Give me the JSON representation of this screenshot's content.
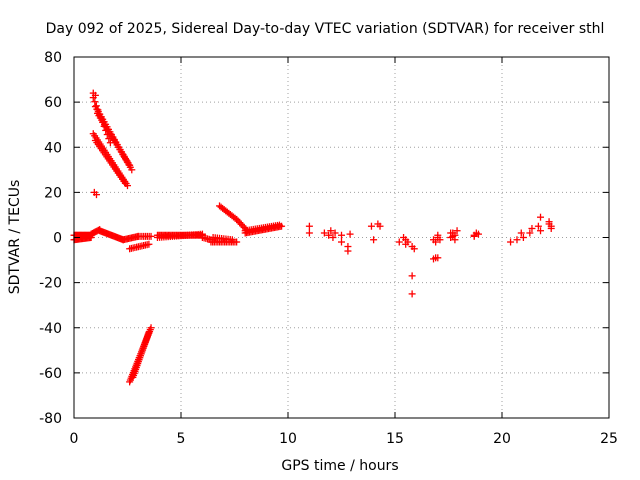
{
  "chart_data": {
    "type": "scatter",
    "title": "Day 092 of 2025, Sidereal Day-to-day VTEC variation (SDTVAR) for receiver sthl",
    "xlabel": "GPS time / hours",
    "ylabel": "SDTVAR / TECUs",
    "xlim": [
      0,
      25
    ],
    "ylim": [
      -80,
      80
    ],
    "xticks": [
      0,
      5,
      10,
      15,
      20,
      25
    ],
    "yticks": [
      -80,
      -60,
      -40,
      -20,
      0,
      20,
      40,
      60,
      80
    ],
    "grid": true,
    "marker": "+",
    "color": "#ff0000",
    "series": [
      {
        "name": "segments",
        "segments": [
          {
            "x0": 0.0,
            "y0": 1.0,
            "x1": 0.8,
            "y1": 1.0,
            "n": 22
          },
          {
            "x0": 0.0,
            "y0": -1.0,
            "x1": 0.8,
            "y1": 0.0,
            "n": 16
          },
          {
            "x0": 0.8,
            "y0": 1.5,
            "x1": 1.2,
            "y1": 3.5,
            "n": 8
          },
          {
            "x0": 1.2,
            "y0": 3.0,
            "x1": 2.3,
            "y1": -1.0,
            "n": 22
          },
          {
            "x0": 2.3,
            "y0": -1.0,
            "x1": 3.0,
            "y1": 0.5,
            "n": 12
          },
          {
            "x0": 3.0,
            "y0": 0.5,
            "x1": 3.6,
            "y1": 0.5,
            "n": 8
          },
          {
            "x0": 0.9,
            "y0": 62.0,
            "x1": 1.7,
            "y1": 42.0,
            "n": 12
          },
          {
            "x0": 1.0,
            "y0": 58.0,
            "x1": 2.7,
            "y1": 30.0,
            "n": 26
          },
          {
            "x0": 1.1,
            "y0": 55.0,
            "x1": 2.6,
            "y1": 32.0,
            "n": 24
          },
          {
            "x0": 0.9,
            "y0": 46.0,
            "x1": 2.5,
            "y1": 23.0,
            "n": 26
          },
          {
            "x0": 1.0,
            "y0": 43.0,
            "x1": 2.4,
            "y1": 24.0,
            "n": 22
          },
          {
            "x0": 2.6,
            "y0": -5.0,
            "x1": 3.5,
            "y1": -3.0,
            "n": 12
          },
          {
            "x0": 2.6,
            "y0": -64.0,
            "x1": 3.6,
            "y1": -40.0,
            "n": 30
          },
          {
            "x0": 2.75,
            "y0": -62.0,
            "x1": 3.5,
            "y1": -42.0,
            "n": 24
          },
          {
            "x0": 3.9,
            "y0": 1.0,
            "x1": 6.0,
            "y1": 1.0,
            "n": 34
          },
          {
            "x0": 3.9,
            "y0": 0.0,
            "x1": 6.0,
            "y1": 1.5,
            "n": 22
          },
          {
            "x0": 6.0,
            "y0": 0.0,
            "x1": 6.4,
            "y1": -1.0,
            "n": 6
          },
          {
            "x0": 6.4,
            "y0": -2.0,
            "x1": 7.6,
            "y1": -2.0,
            "n": 16
          },
          {
            "x0": 6.5,
            "y0": 0.0,
            "x1": 7.4,
            "y1": -1.0,
            "n": 10
          },
          {
            "x0": 6.8,
            "y0": 14.0,
            "x1": 7.6,
            "y1": 8.0,
            "n": 12
          },
          {
            "x0": 7.6,
            "y0": 8.0,
            "x1": 8.1,
            "y1": 3.0,
            "n": 8
          },
          {
            "x0": 8.0,
            "y0": 2.0,
            "x1": 9.7,
            "y1": 5.0,
            "n": 26
          },
          {
            "x0": 8.0,
            "y0": 3.0,
            "x1": 9.6,
            "y1": 5.5,
            "n": 18
          }
        ]
      },
      {
        "name": "points",
        "points": [
          [
            0.95,
            20.0
          ],
          [
            1.05,
            19.0
          ],
          [
            0.9,
            64.0
          ],
          [
            1.0,
            63.0
          ],
          [
            11.0,
            5.0
          ],
          [
            11.0,
            2.0
          ],
          [
            11.7,
            2.0
          ],
          [
            11.9,
            1.0
          ],
          [
            12.0,
            3.0
          ],
          [
            12.1,
            0.0
          ],
          [
            12.2,
            2.0
          ],
          [
            12.5,
            1.0
          ],
          [
            12.5,
            -2.0
          ],
          [
            12.8,
            -4.0
          ],
          [
            12.8,
            -6.0
          ],
          [
            12.9,
            1.5
          ],
          [
            13.9,
            5.0
          ],
          [
            14.2,
            6.0
          ],
          [
            14.3,
            5.0
          ],
          [
            14.0,
            -1.0
          ],
          [
            15.2,
            -2.0
          ],
          [
            15.4,
            0.0
          ],
          [
            15.5,
            -1.0
          ],
          [
            15.6,
            -2.0
          ],
          [
            15.5,
            -3.0
          ],
          [
            15.8,
            -4.0
          ],
          [
            15.9,
            -5.0
          ],
          [
            15.8,
            -17.0
          ],
          [
            15.8,
            -25.0
          ],
          [
            16.8,
            -1.0
          ],
          [
            16.9,
            -2.0
          ],
          [
            17.0,
            0.0
          ],
          [
            17.1,
            -1.0
          ],
          [
            17.0,
            1.0
          ],
          [
            16.9,
            -9.0
          ],
          [
            17.0,
            -9.0
          ],
          [
            16.8,
            -9.5
          ],
          [
            17.6,
            0.0
          ],
          [
            17.7,
            2.0
          ],
          [
            17.8,
            1.0
          ],
          [
            17.9,
            3.0
          ],
          [
            17.6,
            2.0
          ],
          [
            17.8,
            -1.0
          ],
          [
            17.7,
            0.5
          ],
          [
            18.7,
            1.0
          ],
          [
            18.8,
            2.0
          ],
          [
            18.9,
            1.5
          ],
          [
            18.7,
            0.5
          ],
          [
            20.4,
            -2.0
          ],
          [
            20.7,
            -1.0
          ],
          [
            20.9,
            2.0
          ],
          [
            21.0,
            0.0
          ],
          [
            21.3,
            2.0
          ],
          [
            21.4,
            4.0
          ],
          [
            21.7,
            5.0
          ],
          [
            21.8,
            9.0
          ],
          [
            21.8,
            3.0
          ],
          [
            22.2,
            7.0
          ],
          [
            22.3,
            5.0
          ],
          [
            22.3,
            4.0
          ],
          [
            22.2,
            6.0
          ]
        ]
      }
    ]
  }
}
